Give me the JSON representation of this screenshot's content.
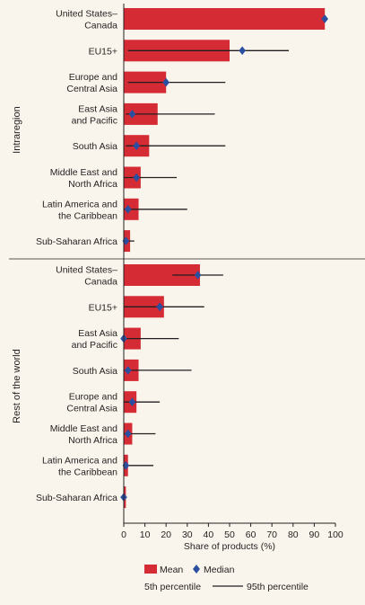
{
  "chart_data": {
    "type": "bar",
    "orientation": "horizontal",
    "xlabel": "Share of products (%)",
    "xlim": [
      0,
      100
    ],
    "xticks": [
      "0",
      "10",
      "20",
      "30",
      "40",
      "50",
      "60",
      "70",
      "80",
      "90",
      "100"
    ],
    "grid": false,
    "legend": {
      "placement": "bottom",
      "mean_label": "Mean",
      "median_label": "Median",
      "p5_label": "5th percentile",
      "p95_label": "95th percentile"
    },
    "colors": {
      "bar": "#d42b35",
      "median": "#2b4fa0",
      "whisker": "#231f20",
      "background": "#faf5ec"
    },
    "groups": [
      {
        "name": "Intraregion",
        "items": [
          {
            "label": [
              "United States–",
              "Canada"
            ],
            "mean": 95,
            "median": 95,
            "p5": 95,
            "p95": 95
          },
          {
            "label": [
              "EU15+"
            ],
            "mean": 50,
            "median": 56,
            "p5": 2,
            "p95": 78
          },
          {
            "label": [
              "Europe and",
              "Central Asia"
            ],
            "mean": 20,
            "median": 20,
            "p5": 2,
            "p95": 48
          },
          {
            "label": [
              "East Asia",
              "and Pacific"
            ],
            "mean": 16,
            "median": 4,
            "p5": 1,
            "p95": 43
          },
          {
            "label": [
              "South Asia"
            ],
            "mean": 12,
            "median": 6,
            "p5": 1,
            "p95": 48
          },
          {
            "label": [
              "Middle East and",
              "North Africa"
            ],
            "mean": 8,
            "median": 6,
            "p5": 0,
            "p95": 25
          },
          {
            "label": [
              "Latin America and",
              "the Caribbean"
            ],
            "mean": 7,
            "median": 2,
            "p5": 0,
            "p95": 30
          },
          {
            "label": [
              "Sub-Saharan Africa"
            ],
            "mean": 3,
            "median": 1,
            "p5": 0,
            "p95": 5
          }
        ]
      },
      {
        "name": "Rest of the world",
        "items": [
          {
            "label": [
              "United States–",
              "Canada"
            ],
            "mean": 36,
            "median": 35,
            "p5": 23,
            "p95": 47
          },
          {
            "label": [
              "EU15+"
            ],
            "mean": 19,
            "median": 17,
            "p5": 0,
            "p95": 38
          },
          {
            "label": [
              "East Asia",
              "and Pacific"
            ],
            "mean": 8,
            "median": 0,
            "p5": 0,
            "p95": 26
          },
          {
            "label": [
              "South Asia"
            ],
            "mean": 7,
            "median": 2,
            "p5": 0,
            "p95": 32
          },
          {
            "label": [
              "Europe and",
              "Central Asia"
            ],
            "mean": 6,
            "median": 4,
            "p5": 0,
            "p95": 17
          },
          {
            "label": [
              "Middle East and",
              "North Africa"
            ],
            "mean": 4,
            "median": 2,
            "p5": 0,
            "p95": 15
          },
          {
            "label": [
              "Latin America and",
              "the Caribbean"
            ],
            "mean": 2,
            "median": 1,
            "p5": 0,
            "p95": 14
          },
          {
            "label": [
              "Sub-Saharan Africa"
            ],
            "mean": 1,
            "median": 0,
            "p5": 0,
            "p95": 1
          }
        ]
      }
    ]
  }
}
